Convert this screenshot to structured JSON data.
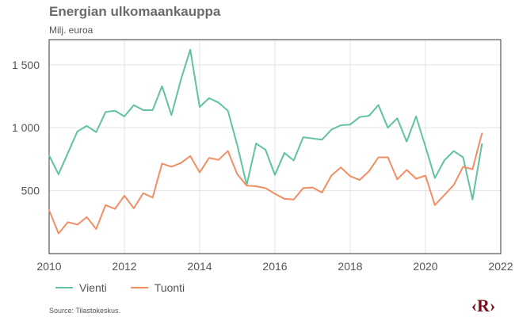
{
  "chart_data": {
    "type": "line",
    "title": "Energian ulkomaankauppa",
    "subtitle": "Milj. euroa",
    "xlabel": "",
    "ylabel": "",
    "xlim": [
      2010,
      2022
    ],
    "ylim": [
      0,
      1700
    ],
    "x_ticks": [
      2010,
      2012,
      2014,
      2016,
      2018,
      2020,
      2022
    ],
    "x_tick_labels": [
      "2010",
      "2012",
      "2014",
      "2016",
      "2018",
      "2020",
      "2022"
    ],
    "y_ticks": [
      500,
      1000,
      1500
    ],
    "y_tick_labels": [
      "500",
      "1 000",
      "1 500"
    ],
    "x": [
      2010.0,
      2010.25,
      2010.5,
      2010.75,
      2011.0,
      2011.25,
      2011.5,
      2011.75,
      2012.0,
      2012.25,
      2012.5,
      2012.75,
      2013.0,
      2013.25,
      2013.5,
      2013.75,
      2014.0,
      2014.25,
      2014.5,
      2014.75,
      2015.0,
      2015.25,
      2015.5,
      2015.75,
      2016.0,
      2016.25,
      2016.5,
      2016.75,
      2017.0,
      2017.25,
      2017.5,
      2017.75,
      2018.0,
      2018.25,
      2018.5,
      2018.75,
      2019.0,
      2019.25,
      2019.5,
      2019.75,
      2020.0,
      2020.25,
      2020.5,
      2020.75,
      2021.0,
      2021.25,
      2021.5
    ],
    "series": [
      {
        "name": "Vienti",
        "color": "#62c2a0",
        "values": [
          780,
          630,
          800,
          970,
          1015,
          965,
          1125,
          1135,
          1090,
          1180,
          1140,
          1140,
          1330,
          1100,
          1380,
          1620,
          1165,
          1235,
          1200,
          1135,
          860,
          545,
          875,
          825,
          625,
          800,
          740,
          925,
          915,
          905,
          985,
          1020,
          1025,
          1085,
          1095,
          1180,
          1000,
          1075,
          890,
          1090,
          850,
          600,
          740,
          815,
          765,
          430,
          870
        ]
      },
      {
        "name": "Tuonti",
        "color": "#f28e63",
        "values": [
          345,
          160,
          250,
          230,
          290,
          195,
          385,
          355,
          460,
          360,
          480,
          445,
          715,
          690,
          720,
          775,
          645,
          760,
          745,
          815,
          630,
          540,
          535,
          520,
          475,
          435,
          430,
          520,
          525,
          485,
          620,
          685,
          615,
          585,
          655,
          765,
          765,
          590,
          665,
          595,
          620,
          385,
          465,
          545,
          690,
          670,
          955
        ]
      }
    ],
    "grid": true,
    "legend": "bottom-left"
  },
  "source": "Source: Tilastokeskus.",
  "logo_text": "R"
}
